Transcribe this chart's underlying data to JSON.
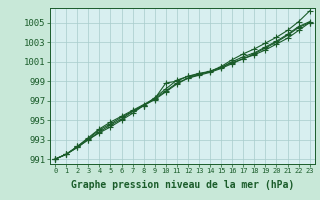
{
  "title": "Graphe pression niveau de la mer (hPa)",
  "background_color": "#c8e8d8",
  "plot_bg_color": "#d8eff0",
  "grid_color": "#a8cccc",
  "line_color": "#1a5c2a",
  "hours": [
    0,
    1,
    2,
    3,
    4,
    5,
    6,
    7,
    8,
    9,
    10,
    11,
    12,
    13,
    14,
    15,
    16,
    17,
    18,
    19,
    20,
    21,
    22,
    23
  ],
  "series": [
    [
      991.0,
      991.5,
      992.2,
      993.0,
      993.7,
      994.3,
      995.0,
      995.7,
      996.5,
      997.2,
      998.8,
      999.0,
      999.5,
      999.7,
      1000.0,
      1000.5,
      1001.2,
      1001.8,
      1002.3,
      1002.9,
      1003.5,
      1004.2,
      1005.1,
      1006.2
    ],
    [
      991.0,
      991.5,
      992.2,
      993.0,
      993.8,
      994.5,
      995.1,
      995.9,
      996.5,
      997.3,
      998.2,
      999.1,
      999.5,
      999.8,
      1000.0,
      1000.4,
      1000.9,
      1001.3,
      1001.7,
      1002.2,
      1002.8,
      1003.4,
      1004.2,
      1005.0
    ],
    [
      991.0,
      991.5,
      992.3,
      993.1,
      994.0,
      994.6,
      995.3,
      995.9,
      996.5,
      997.1,
      997.9,
      998.7,
      999.3,
      999.6,
      999.9,
      1000.3,
      1000.8,
      1001.3,
      1001.8,
      1002.4,
      1003.0,
      1003.7,
      1004.5,
      1005.0
    ],
    [
      991.0,
      991.5,
      992.3,
      993.2,
      994.1,
      994.8,
      995.4,
      996.0,
      996.6,
      997.2,
      998.0,
      998.8,
      999.3,
      999.7,
      1000.0,
      1000.4,
      1001.0,
      1001.5,
      1001.9,
      1002.5,
      1003.1,
      1003.8,
      1004.6,
      1005.1
    ]
  ],
  "ylim": [
    990.5,
    1006.5
  ],
  "yticks": [
    991,
    993,
    995,
    997,
    999,
    1001,
    1003,
    1005
  ],
  "xlim": [
    -0.5,
    23.5
  ],
  "marker": "+",
  "markersize": 4,
  "linewidth": 0.8,
  "figsize": [
    3.2,
    2.0
  ],
  "dpi": 100
}
